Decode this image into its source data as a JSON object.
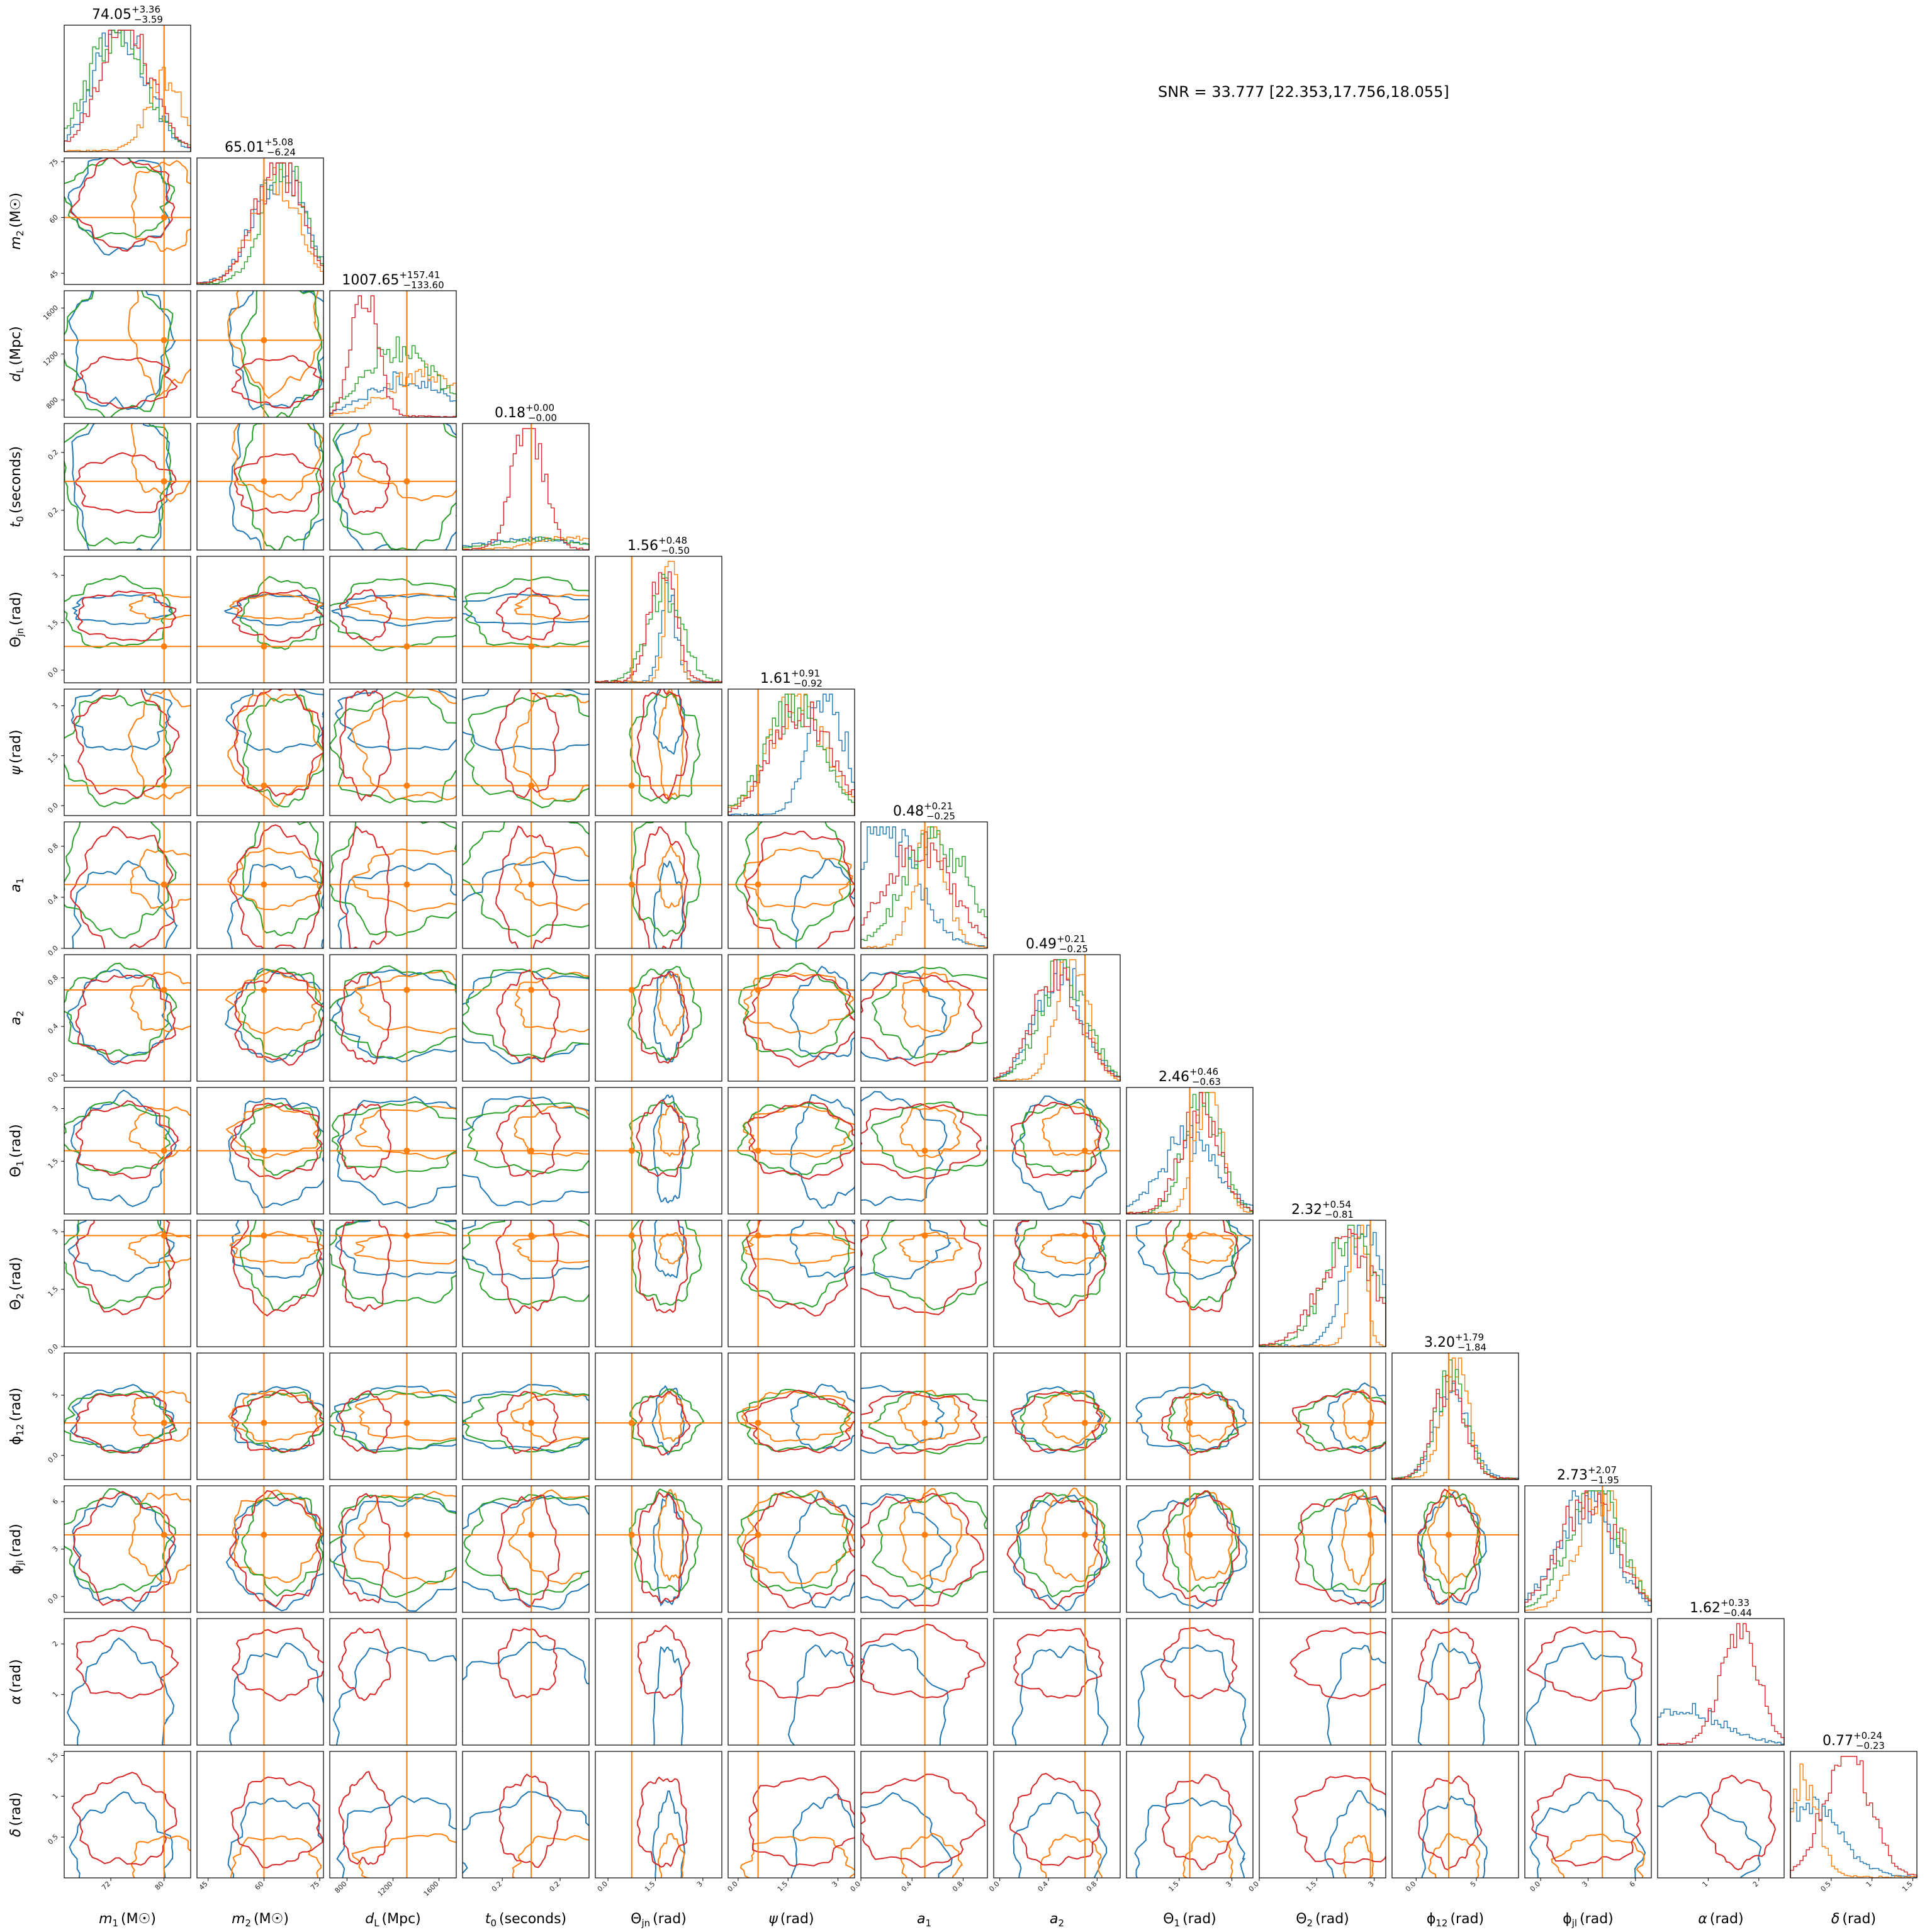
{
  "chart_data": {
    "type": "corner",
    "annotation": "SNR = 33.777 [22.353,17.756,18.055]",
    "colors": {
      "blue": "#1f77b4",
      "orange": "#ff7f0e",
      "green": "#2ca02c",
      "red": "#d62728",
      "truth": "#ff7f0e"
    },
    "parameters": [
      {
        "label": "m1 (M☉)",
        "sym": "m",
        "sub": "1",
        "unit": "(M☉)",
        "title": "74.05",
        "plus": "+3.36",
        "minus": "−3.59",
        "range": [
          65,
          84
        ],
        "ticks": [
          72,
          80
        ],
        "truth": 80.0
      },
      {
        "label": "m2 (M☉)",
        "sym": "m",
        "sub": "2",
        "unit": "(M☉)",
        "title": "65.01",
        "plus": "+5.08",
        "minus": "−6.24",
        "range": [
          42,
          76
        ],
        "ticks": [
          45,
          60,
          75
        ],
        "truth": 60.0
      },
      {
        "label": "dL (Mpc)",
        "sym": "d",
        "sub": "L",
        "unit": "(Mpc)",
        "title": "1007.65",
        "plus": "+157.41",
        "minus": "−133.60",
        "range": [
          650,
          1750
        ],
        "ticks": [
          800,
          1200,
          1600
        ],
        "truth": 1320
      },
      {
        "label": "t0 (seconds)",
        "sym": "t",
        "sub": "0",
        "unit": "(seconds)",
        "title": "0.18",
        "plus": "+0.00",
        "minus": "−0.00",
        "range": [
          0.1705,
          0.188
        ],
        "ticks": [
          0.176,
          0.184
        ],
        "truth": 0.18
      },
      {
        "label": "Θjn (rad)",
        "sym": "Θ",
        "sub": "jn",
        "unit": "(rad)",
        "title": "1.56",
        "plus": "+0.48",
        "minus": "−0.50",
        "range": [
          -0.4,
          3.6
        ],
        "ticks": [
          0.0,
          1.5,
          3.0
        ],
        "truth": 0.75
      },
      {
        "label": "ψ (rad)",
        "sym": "ψ",
        "sub": "",
        "unit": "(rad)",
        "title": "1.61",
        "plus": "+0.91",
        "minus": "−0.92",
        "range": [
          -0.3,
          3.5
        ],
        "ticks": [
          0.0,
          1.5,
          3.0
        ],
        "truth": 0.6
      },
      {
        "label": "a1",
        "sym": "a",
        "sub": "1",
        "unit": "",
        "title": "0.48",
        "plus": "+0.21",
        "minus": "−0.25",
        "range": [
          0.0,
          0.99
        ],
        "ticks": [
          0.0,
          0.4,
          0.8
        ],
        "truth": 0.5
      },
      {
        "label": "a2",
        "sym": "a",
        "sub": "2",
        "unit": "",
        "title": "0.49",
        "plus": "+0.21",
        "minus": "−0.25",
        "range": [
          -0.05,
          0.99
        ],
        "ticks": [
          0.0,
          0.4,
          0.8
        ],
        "truth": 0.7
      },
      {
        "label": "Θ1 (rad)",
        "sym": "Θ",
        "sub": "1",
        "unit": "(rad)",
        "title": "2.46",
        "plus": "+0.46",
        "minus": "−0.63",
        "range": [
          0.0,
          3.6
        ],
        "ticks": [
          1.5,
          3.0
        ],
        "truth": 1.8
      },
      {
        "label": "Θ2 (rad)",
        "sym": "Θ",
        "sub": "2",
        "unit": "(rad)",
        "title": "2.32",
        "plus": "+0.54",
        "minus": "−0.81",
        "range": [
          0.0,
          3.3
        ],
        "ticks": [
          0.0,
          1.5,
          3.0
        ],
        "truth": 2.9
      },
      {
        "label": "ϕ12 (rad)",
        "sym": "ϕ",
        "sub": "12",
        "unit": "(rad)",
        "title": "3.20",
        "plus": "+1.79",
        "minus": "−1.84",
        "range": [
          -2.0,
          8.5
        ],
        "ticks": [
          0,
          5
        ],
        "truth": 2.7
      },
      {
        "label": "ϕjl (rad)",
        "sym": "ϕ",
        "sub": "jl",
        "unit": "(rad)",
        "title": "2.73",
        "plus": "+2.07",
        "minus": "−1.95",
        "range": [
          -1.0,
          7.0
        ],
        "ticks": [
          0,
          3,
          6
        ],
        "truth": 3.9
      },
      {
        "label": "α (rad)",
        "sym": "α",
        "sub": "",
        "unit": "(rad)",
        "title": "1.62",
        "plus": "+0.33",
        "minus": "−0.44",
        "range": [
          0.0,
          2.5
        ],
        "ticks": [
          1,
          2
        ],
        "truth": null
      },
      {
        "label": "δ (rad)",
        "sym": "δ",
        "sub": "",
        "unit": "(rad)",
        "title": "0.77",
        "plus": "+0.24",
        "minus": "−0.23",
        "range": [
          0.0,
          1.55
        ],
        "ticks": [
          0.5,
          1.0,
          1.5
        ],
        "truth": null
      }
    ]
  }
}
